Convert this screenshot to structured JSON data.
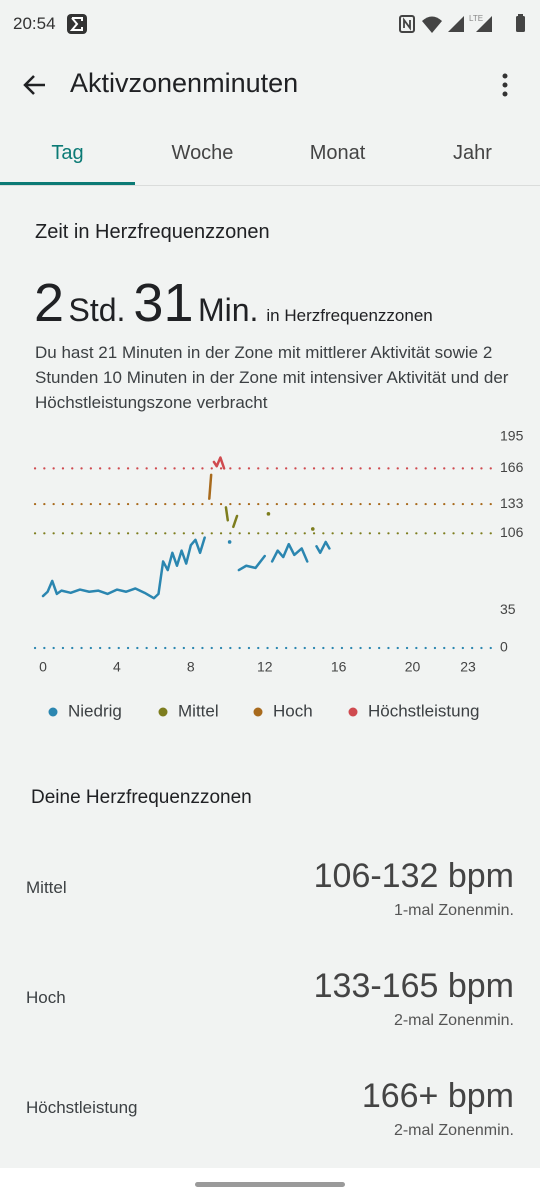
{
  "status_bar": {
    "time": "20:54"
  },
  "header": {
    "title": "Aktivzonenminuten"
  },
  "tabs": {
    "items": [
      "Tag",
      "Woche",
      "Monat",
      "Jahr"
    ],
    "selected": 0
  },
  "summary": {
    "heading": "Zeit in Herzfrequenzzonen",
    "hours": "2",
    "hours_unit": "Std.",
    "minutes": "31",
    "minutes_unit": "Min.",
    "suffix": "in Herzfrequenzzonen",
    "description": "Du hast 21 Minuten in der Zone mit mittlerer Aktivität sowie 2 Stunden 10 Minuten in der Zone mit intensiver Aktivität und der Höchstleistungszone verbracht"
  },
  "chart_data": {
    "type": "line",
    "x": [
      0,
      0.25,
      0.5,
      0.75,
      1,
      1.5,
      2,
      2.5,
      3,
      3.5,
      4,
      4.5,
      5,
      5.5,
      6,
      6.25,
      6.5,
      6.75,
      7,
      7.25,
      7.5,
      7.75,
      8,
      8.25,
      8.5,
      8.75,
      9,
      9.1,
      9.25,
      9.4,
      9.6,
      9.8,
      9.9,
      10,
      10.1,
      10.3,
      10.5,
      10.6,
      11,
      11.5,
      12,
      12.2,
      12.4,
      12.7,
      13,
      13.3,
      13.6,
      14,
      14.3,
      14.6,
      14.8,
      15,
      15.3,
      15.5
    ],
    "series": [
      {
        "name": "Niedrig",
        "color": "#2b86b0",
        "values": [
          48,
          52,
          62,
          50,
          53,
          51,
          54,
          52,
          53,
          50,
          54,
          52,
          55,
          51,
          46,
          50,
          80,
          72,
          88,
          76,
          90,
          78,
          95,
          100,
          88,
          102,
          null,
          null,
          null,
          null,
          null,
          null,
          null,
          null,
          98,
          null,
          null,
          72,
          76,
          74,
          85,
          null,
          80,
          90,
          84,
          96,
          86,
          92,
          80,
          null,
          94,
          88,
          98,
          92
        ]
      },
      {
        "name": "Mittel",
        "color": "#7d7d1e",
        "values": [
          null,
          null,
          null,
          null,
          null,
          null,
          null,
          null,
          null,
          null,
          null,
          null,
          null,
          null,
          null,
          null,
          null,
          null,
          null,
          null,
          null,
          null,
          null,
          null,
          null,
          null,
          null,
          null,
          null,
          null,
          null,
          null,
          130,
          118,
          null,
          112,
          122,
          null,
          null,
          null,
          null,
          124,
          null,
          null,
          null,
          null,
          null,
          null,
          null,
          110,
          null,
          null,
          null,
          null
        ]
      },
      {
        "name": "Hoch",
        "color": "#a86a1d",
        "values": [
          null,
          null,
          null,
          null,
          null,
          null,
          null,
          null,
          null,
          null,
          null,
          null,
          null,
          null,
          null,
          null,
          null,
          null,
          null,
          null,
          null,
          null,
          null,
          null,
          null,
          null,
          138,
          160,
          null,
          null,
          null,
          null,
          null,
          null,
          null,
          null,
          null,
          null,
          null,
          null,
          null,
          null,
          null,
          null,
          null,
          null,
          null,
          null,
          null,
          null,
          null,
          null,
          null,
          null
        ]
      },
      {
        "name": "Höchstleistung",
        "color": "#cf4a4f",
        "values": [
          null,
          null,
          null,
          null,
          null,
          null,
          null,
          null,
          null,
          null,
          null,
          null,
          null,
          null,
          null,
          null,
          null,
          null,
          null,
          null,
          null,
          null,
          null,
          null,
          null,
          null,
          null,
          null,
          172,
          168,
          176,
          166,
          null,
          null,
          null,
          null,
          null,
          null,
          null,
          null,
          null,
          null,
          null,
          null,
          null,
          null,
          null,
          null,
          null,
          null,
          null,
          null,
          null,
          null
        ]
      }
    ],
    "xlim": [
      0,
      23
    ],
    "xticks": [
      0,
      4,
      8,
      12,
      16,
      20,
      23
    ],
    "ylim": [
      0,
      195
    ],
    "yticks": [
      0,
      35,
      106,
      133,
      166,
      195
    ],
    "zone_lines": [
      {
        "value": 166,
        "color": "#cf4a4f"
      },
      {
        "value": 133,
        "color": "#a86a1d"
      },
      {
        "value": 106,
        "color": "#7d7d1e"
      },
      {
        "value": 0,
        "color": "#2b86b0"
      }
    ]
  },
  "zones": {
    "title": "Deine Herzfrequenzzonen",
    "rows": [
      {
        "name": "Mittel",
        "range": "106-132 bpm",
        "count": "1-mal Zonenmin."
      },
      {
        "name": "Hoch",
        "range": "133-165 bpm",
        "count": "2-mal Zonenmin."
      },
      {
        "name": "Höchstleistung",
        "range": "166+ bpm",
        "count": "2-mal Zonenmin."
      }
    ]
  }
}
